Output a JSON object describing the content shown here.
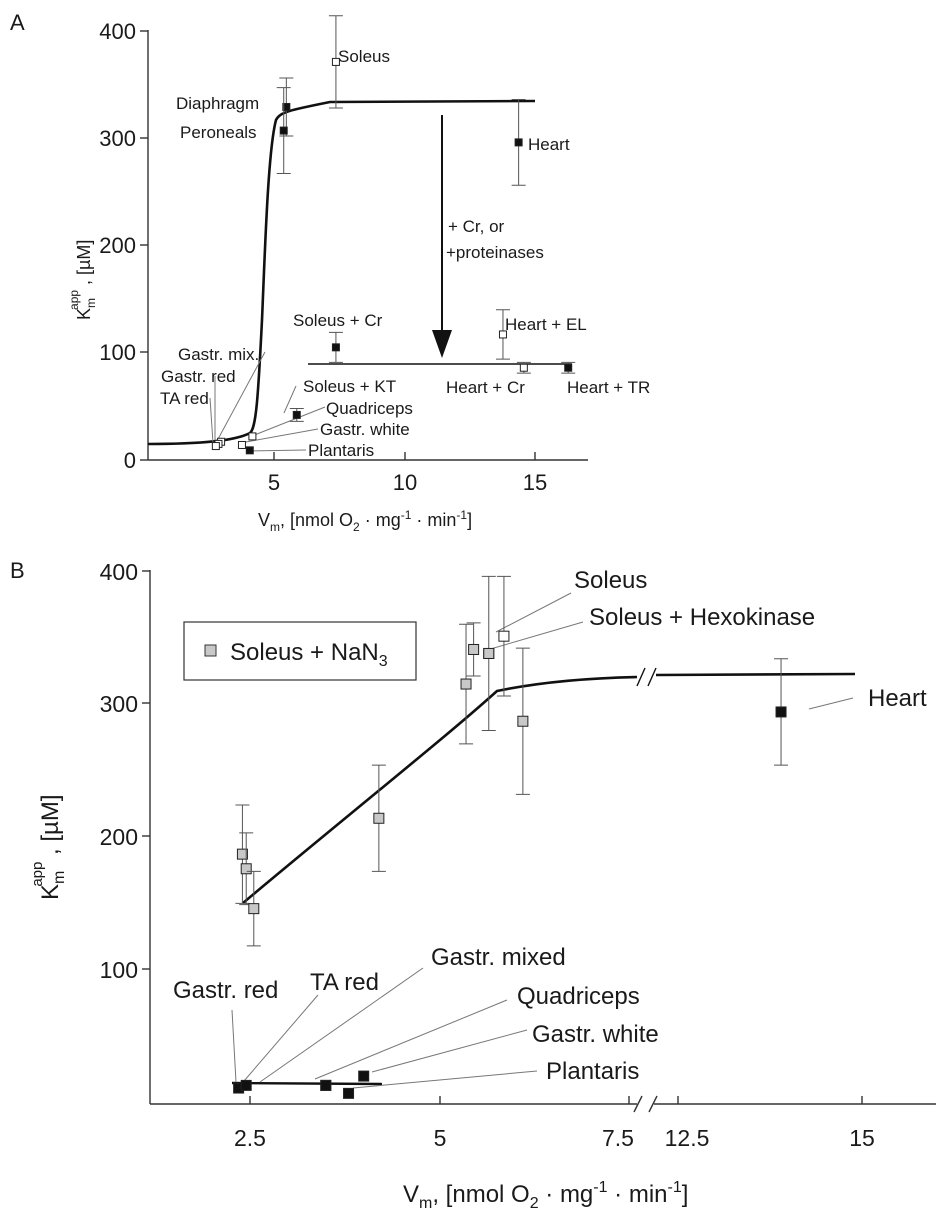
{
  "panels": {
    "a": {
      "letter": "A",
      "xlabel": {
        "main": "V",
        "sub": "m",
        "rest": ", [nmol O",
        "o2": "2",
        "dot1": " · mg",
        "sup1": "-1",
        "dot2": " · min",
        "sup2": "-1",
        "end": "]"
      },
      "ylabel": {
        "k": "K",
        "sub": "m",
        "sup": "app",
        "rest": " , [µM]"
      },
      "xticks": [
        "5",
        "10",
        "15"
      ],
      "yticks": [
        "0",
        "100",
        "200",
        "300",
        "400"
      ],
      "arrow_label": [
        "+ Cr, or",
        "+proteinases"
      ],
      "point_labels": {
        "soleus": "Soleus",
        "diaphragm": "Diaphragm",
        "peroneals": "Peroneals",
        "heart": "Heart",
        "soleus_cr": "Soleus + Cr",
        "heart_el": "Heart + EL",
        "gastr_mix": "Gastr. mix.",
        "gastr_red": "Gastr. red",
        "ta_red": "TA red",
        "soleus_kt": "Soleus + KT",
        "heart_cr": "Heart + Cr",
        "heart_tr": "Heart + TR",
        "quadriceps": "Quadriceps",
        "gastr_white": "Gastr. white",
        "plantaris": "Plantaris"
      }
    },
    "b": {
      "letter": "B",
      "xlabel": {
        "main": "V",
        "sub": "m",
        "rest": ", [nmol O",
        "o2": "2",
        "dot1": " · mg",
        "sup1": "-1",
        "dot2": " · min",
        "sup2": "-1",
        "end": "]"
      },
      "ylabel": {
        "k": "K",
        "sub": "m",
        "sup": "app",
        "rest": " , [µM]"
      },
      "xticks": [
        "2.5",
        "5",
        "7.5",
        "12.5",
        "15"
      ],
      "yticks": [
        "100",
        "200",
        "300",
        "400"
      ],
      "legend": {
        "text": "Soleus + NaN",
        "sub": "3"
      },
      "point_labels": {
        "soleus": "Soleus",
        "soleus_hk": "Soleus + Hexokinase",
        "heart": "Heart",
        "gastr_red": "Gastr. red",
        "ta_red": "TA red",
        "gastr_mixed": "Gastr. mixed",
        "quadriceps": "Quadriceps",
        "gastr_white": "Gastr. white",
        "plantaris": "Plantaris"
      }
    }
  },
  "colors": {
    "dark_marker": "#111111",
    "grey_marker": "#c8c8c8",
    "open_marker": "#ffffff",
    "line": "#111111"
  },
  "chart_data": [
    {
      "panel": "A",
      "type": "scatter",
      "xlabel": "Vm, [nmol O2 · mg-1 · min-1]",
      "ylabel": "Km app , [µM]",
      "xlim": [
        0,
        17
      ],
      "ylim": [
        0,
        400
      ],
      "xticks": [
        5,
        10,
        15
      ],
      "yticks": [
        0,
        100,
        200,
        300,
        400
      ],
      "points": [
        {
          "label": "Soleus",
          "x": 7.2,
          "y": 371,
          "err": 43,
          "marker": "open"
        },
        {
          "label": "Diaphragm",
          "x": 5.3,
          "y": 329,
          "err": 27,
          "marker": "dark"
        },
        {
          "label": "Peroneals",
          "x": 5.2,
          "y": 307,
          "err": 40,
          "marker": "dark"
        },
        {
          "label": "Heart",
          "x": 14.2,
          "y": 296,
          "err": 40,
          "marker": "dark"
        },
        {
          "label": "Soleus + Cr",
          "x": 7.2,
          "y": 105,
          "err": 14,
          "marker": "dark"
        },
        {
          "label": "Heart + EL",
          "x": 13.6,
          "y": 117,
          "err": 23,
          "marker": "open"
        },
        {
          "label": "Heart + Cr",
          "x": 14.4,
          "y": 86,
          "err": 5,
          "marker": "open"
        },
        {
          "label": "Heart + TR",
          "x": 16.1,
          "y": 86,
          "err": 5,
          "marker": "dark"
        },
        {
          "label": "Soleus + KT",
          "x": 5.7,
          "y": 42,
          "err": 6,
          "marker": "dark"
        },
        {
          "label": "Quadriceps",
          "x": 4.0,
          "y": 22,
          "err": 0,
          "marker": "open"
        },
        {
          "label": "Gastr. white",
          "x": 3.6,
          "y": 14,
          "err": 0,
          "marker": "open"
        },
        {
          "label": "Plantaris",
          "x": 3.9,
          "y": 9,
          "err": 0,
          "marker": "dark"
        },
        {
          "label": "Gastr. mix.",
          "x": 2.8,
          "y": 17,
          "err": 0,
          "marker": "open"
        },
        {
          "label": "Gastr. red",
          "x": 2.7,
          "y": 15,
          "err": 0,
          "marker": "open"
        },
        {
          "label": "TA red",
          "x": 2.6,
          "y": 13,
          "err": 0,
          "marker": "open"
        }
      ],
      "fit_curve": {
        "x": [
          0,
          2,
          3,
          4,
          4.5,
          4.8,
          5.0,
          5.2,
          5.4,
          5.7,
          6,
          8,
          15
        ],
        "y": [
          15,
          16,
          17,
          25,
          60,
          150,
          250,
          300,
          322,
          328,
          330,
          333,
          334
        ]
      },
      "fit_line_lower": {
        "x": [
          6.2,
          16.3
        ],
        "y": [
          91,
          91
        ]
      },
      "arrow": {
        "x": 11.3,
        "from_y": 320,
        "to_y": 105,
        "label": "+ Cr, or +proteinases"
      }
    },
    {
      "panel": "B",
      "type": "scatter",
      "xlabel": "Vm, [nmol O2 · mg-1 · min-1]",
      "ylabel": "Km app , [µM]",
      "ylim": [
        0,
        400
      ],
      "yticks": [
        100,
        200,
        300,
        400
      ],
      "xticks": [
        2.5,
        5,
        7.5,
        12.5,
        15
      ],
      "x_axis_break": "between 7.5 and 12.5",
      "legend": "Soleus + NaN3",
      "series": [
        {
          "name": "Soleus + NaN3",
          "marker": "grey",
          "points": [
            {
              "x": 2.4,
              "y": 188,
              "err": 37
            },
            {
              "x": 2.45,
              "y": 177,
              "err": 27
            },
            {
              "x": 2.55,
              "y": 147,
              "err": 28
            },
            {
              "x": 4.2,
              "y": 215,
              "err": 40
            },
            {
              "x": 5.35,
              "y": 316,
              "err": 45
            },
            {
              "x": 5.45,
              "y": 342,
              "err": 20
            },
            {
              "x": 5.65,
              "y": 339,
              "err": 58
            },
            {
              "x": 6.1,
              "y": 288,
              "err": 55
            }
          ]
        },
        {
          "name": "",
          "marker": "labelled",
          "points": [
            {
              "label": "Soleus",
              "x": 5.85,
              "y": 352,
              "err": 45,
              "marker": "open"
            },
            {
              "label": "Soleus + Hexokinase",
              "x": 5.65,
              "y": 339,
              "err": 0,
              "marker": "grey"
            },
            {
              "label": "Heart",
              "x": 13.9,
              "y": 295,
              "err": 40,
              "marker": "dark"
            },
            {
              "label": "Gastr. red",
              "x": 2.35,
              "y": 12,
              "err": 0,
              "marker": "dark"
            },
            {
              "label": "TA red",
              "x": 2.45,
              "y": 14,
              "err": 0,
              "marker": "dark"
            },
            {
              "label": "Gastr. mixed",
              "x": 3.5,
              "y": 14,
              "err": 0,
              "marker": "dark"
            },
            {
              "label": "Quadriceps",
              "x": 4.0,
              "y": 21,
              "err": 0,
              "marker": "dark"
            },
            {
              "label": "Gastr. white",
              "x": 3.5,
              "y": 14,
              "err": 0,
              "marker": "dark"
            },
            {
              "label": "Plantaris",
              "x": 3.8,
              "y": 8,
              "err": 0,
              "marker": "dark"
            }
          ]
        }
      ],
      "fit_curve": {
        "x": [
          2.3,
          3.0,
          4.0,
          5.0,
          5.7,
          6.2,
          7.5,
          12.5,
          14.8
        ],
        "y": [
          150,
          195,
          245,
          285,
          309,
          313,
          320,
          323,
          323
        ]
      },
      "fit_line_lower": {
        "x": [
          2.3,
          4.2
        ],
        "y": [
          15,
          15
        ]
      }
    }
  ]
}
